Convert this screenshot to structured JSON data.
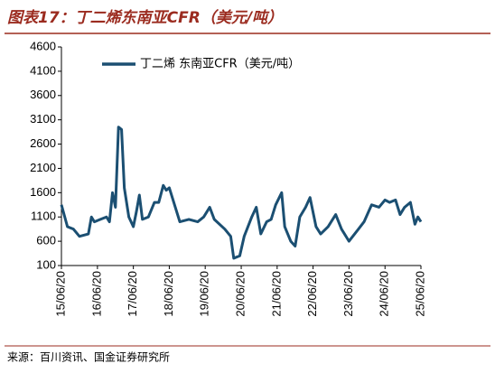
{
  "chart_data": {
    "type": "line",
    "title": "图表17：丁二烯东南亚CFR（美元/吨）",
    "source": "来源：百川资讯、国金证券研究所",
    "x": [
      "15/06/20",
      "15/08/20",
      "15/10/20",
      "15/12/20",
      "16/03/20",
      "16/04/20",
      "16/05/20",
      "16/07/20",
      "16/09/20",
      "16/10/20",
      "16/11/20",
      "16/12/20",
      "17/01/20",
      "17/02/20",
      "17/03/20",
      "17/05/05",
      "17/06/20",
      "17/07/20",
      "17/08/20",
      "17/09/20",
      "17/11/20",
      "18/01/20",
      "18/03/05",
      "18/04/20",
      "18/05/20",
      "18/06/20",
      "18/08/20",
      "18/10/05",
      "19/01/05",
      "19/04/05",
      "19/06/05",
      "19/08/05",
      "19/09/20",
      "20/01/05",
      "20/03/05",
      "20/04/05",
      "20/06/05",
      "20/07/20",
      "20/10/05",
      "20/11/20",
      "21/01/05",
      "21/03/05",
      "21/04/20",
      "21/06/05",
      "21/08/05",
      "21/09/05",
      "21/11/05",
      "21/12/20",
      "22/02/05",
      "22/04/05",
      "22/05/20",
      "22/07/20",
      "22/09/05",
      "22/11/20",
      "23/02/05",
      "23/04/05",
      "23/06/20",
      "23/09/05",
      "23/11/20",
      "24/02/05",
      "24/04/20",
      "24/06/20",
      "24/08/05",
      "24/10/05",
      "24/11/20",
      "25/01/05",
      "25/03/05",
      "25/04/20",
      "25/05/20",
      "25/06/20"
    ],
    "series": [
      {
        "name": "丁二烯 东南亚CFR（美元/吨）",
        "color": "#1b4f72",
        "values": [
          1350,
          900,
          850,
          700,
          750,
          1100,
          1000,
          1050,
          1100,
          1000,
          1600,
          1300,
          2950,
          2900,
          1700,
          1100,
          900,
          1200,
          1550,
          1050,
          1100,
          1400,
          1400,
          1750,
          1650,
          1700,
          1300,
          1000,
          1050,
          1000,
          1100,
          1300,
          1050,
          850,
          700,
          250,
          300,
          700,
          1100,
          1300,
          750,
          1000,
          1050,
          1350,
          1600,
          900,
          600,
          500,
          1100,
          1300,
          1500,
          900,
          750,
          900,
          1150,
          850,
          600,
          800,
          1000,
          1350,
          1300,
          1450,
          1400,
          1450,
          1150,
          1300,
          1400,
          950,
          1100,
          1000
        ]
      }
    ],
    "xlim": [
      "15/06/20",
      "25/06/20"
    ],
    "xticks": [
      "15/06/20",
      "16/06/20",
      "17/06/20",
      "18/06/20",
      "19/06/20",
      "20/06/20",
      "21/06/20",
      "22/06/20",
      "23/06/20",
      "24/06/20",
      "25/06/20"
    ],
    "ylim": [
      100,
      4600
    ],
    "yticks": [
      100,
      600,
      1100,
      1600,
      2100,
      2600,
      3100,
      3600,
      4100,
      4600
    ],
    "grid": false
  }
}
